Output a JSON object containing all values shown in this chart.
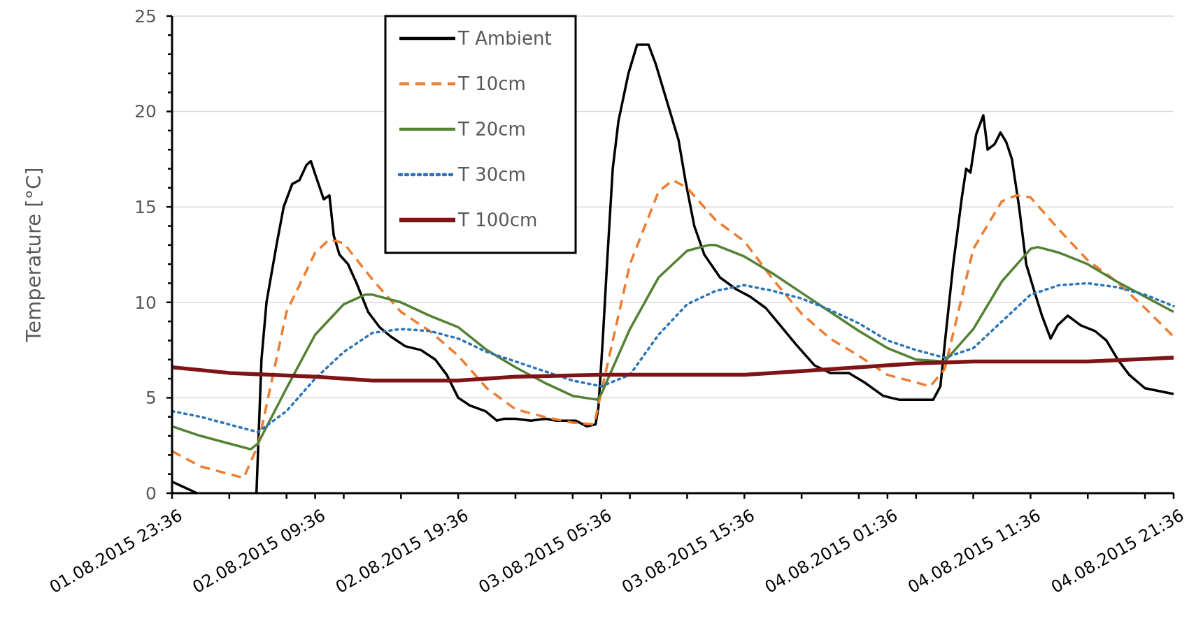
{
  "chart_data": {
    "type": "line",
    "ylabel": "Temperature [°C]",
    "legend": "top left",
    "grid": "y",
    "xlim": [
      "2015-08-01T23:36",
      "2015-08-04T21:36"
    ],
    "xticks": [
      {
        "value": "2015-08-01T23:36",
        "label": "01.08.2015 23:36"
      },
      {
        "value": "2015-08-02T03:36",
        "label": null
      },
      {
        "value": "2015-08-02T07:36",
        "label": null
      },
      {
        "value": "2015-08-02T09:36",
        "label": "02.08.2015 09:36"
      },
      {
        "value": "2015-08-02T11:36",
        "label": null
      },
      {
        "value": "2015-08-02T15:36",
        "label": null
      },
      {
        "value": "2015-08-02T19:36",
        "label": "02.08.2015 19:36"
      },
      {
        "value": "2015-08-02T23:36",
        "label": null
      },
      {
        "value": "2015-08-03T03:36",
        "label": null
      },
      {
        "value": "2015-08-03T05:36",
        "label": "03.08.2015 05:36"
      },
      {
        "value": "2015-08-03T07:36",
        "label": null
      },
      {
        "value": "2015-08-03T11:36",
        "label": null
      },
      {
        "value": "2015-08-03T15:36",
        "label": "03.08.2015 15:36"
      },
      {
        "value": "2015-08-03T19:36",
        "label": null
      },
      {
        "value": "2015-08-03T23:36",
        "label": null
      },
      {
        "value": "2015-08-04T01:36",
        "label": "04.08.2015 01:36"
      },
      {
        "value": "2015-08-04T03:36",
        "label": null
      },
      {
        "value": "2015-08-04T07:36",
        "label": null
      },
      {
        "value": "2015-08-04T11:36",
        "label": "04.08.2015 11:36"
      },
      {
        "value": "2015-08-04T15:36",
        "label": null
      },
      {
        "value": "2015-08-04T19:36",
        "label": null
      },
      {
        "value": "2015-08-04T21:36",
        "label": "04.08.2015 21:36"
      }
    ],
    "ylim": [
      0,
      25
    ],
    "yticks": [
      0,
      {
        "value": 1,
        "label": null
      },
      {
        "value": 2,
        "label": null
      },
      {
        "value": 3,
        "label": null
      },
      {
        "value": 4,
        "label": null
      },
      5,
      {
        "value": 6,
        "label": null
      },
      {
        "value": 7,
        "label": null
      },
      {
        "value": 8,
        "label": null
      },
      {
        "value": 9,
        "label": null
      },
      10,
      {
        "value": 11,
        "label": null
      },
      {
        "value": 12,
        "label": null
      },
      {
        "value": 13,
        "label": null
      },
      {
        "value": 14,
        "label": null
      },
      15,
      {
        "value": 16,
        "label": null
      },
      {
        "value": 17,
        "label": null
      },
      {
        "value": 18,
        "label": null
      },
      {
        "value": 19,
        "label": null
      },
      20,
      {
        "value": 21,
        "label": null
      },
      {
        "value": 22,
        "label": null
      },
      {
        "value": 23,
        "label": null
      },
      {
        "value": 24,
        "label": null
      },
      25
    ],
    "series": [
      {
        "name": "T Ambient",
        "color": "#000000",
        "line_style": "solid",
        "x": [
          "2015-08-01T23:36",
          "2015-08-02T01:21",
          "2015-08-02T03:24",
          "2015-08-02T05:30",
          "2015-08-02T05:51",
          "2015-08-02T06:12",
          "2015-08-02T06:54",
          "2015-08-02T07:24",
          "2015-08-02T08:00",
          "2015-08-02T08:30",
          "2015-08-02T09:00",
          "2015-08-02T09:18",
          "2015-08-02T09:42",
          "2015-08-02T10:12",
          "2015-08-02T10:36",
          "2015-08-02T10:54",
          "2015-08-02T11:18",
          "2015-08-02T11:54",
          "2015-08-02T12:30",
          "2015-08-02T13:18",
          "2015-08-02T14:06",
          "2015-08-02T14:54",
          "2015-08-02T15:54",
          "2015-08-02T17:00",
          "2015-08-02T18:00",
          "2015-08-02T18:48",
          "2015-08-02T19:36",
          "2015-08-02T20:24",
          "2015-08-02T21:30",
          "2015-08-02T22:18",
          "2015-08-02T22:48",
          "2015-08-02T23:36",
          "2015-08-03T00:42",
          "2015-08-03T01:42",
          "2015-08-03T02:30",
          "2015-08-03T03:48",
          "2015-08-03T04:36",
          "2015-08-03T05:12",
          "2015-08-03T05:24",
          "2015-08-03T05:42",
          "2015-08-03T06:00",
          "2015-08-03T06:24",
          "2015-08-03T06:48",
          "2015-08-03T07:30",
          "2015-08-03T08:06",
          "2015-08-03T08:54",
          "2015-08-03T09:24",
          "2015-08-03T10:12",
          "2015-08-03T11:00",
          "2015-08-03T11:30",
          "2015-08-03T12:06",
          "2015-08-03T12:48",
          "2015-08-03T13:54",
          "2015-08-03T15:00",
          "2015-08-03T16:00",
          "2015-08-03T17:06",
          "2015-08-03T18:06",
          "2015-08-03T19:12",
          "2015-08-03T20:30",
          "2015-08-03T21:36",
          "2015-08-03T22:54",
          "2015-08-04T00:00",
          "2015-08-04T01:18",
          "2015-08-04T02:24",
          "2015-08-04T03:24",
          "2015-08-04T04:48",
          "2015-08-04T05:18",
          "2015-08-04T05:42",
          "2015-08-04T06:12",
          "2015-08-04T06:48",
          "2015-08-04T07:06",
          "2015-08-04T07:24",
          "2015-08-04T07:48",
          "2015-08-04T08:18",
          "2015-08-04T08:36",
          "2015-08-04T09:06",
          "2015-08-04T09:30",
          "2015-08-04T09:54",
          "2015-08-04T10:18",
          "2015-08-04T10:48",
          "2015-08-04T11:18",
          "2015-08-04T11:54",
          "2015-08-04T12:24",
          "2015-08-04T13:00",
          "2015-08-04T13:30",
          "2015-08-04T14:12",
          "2015-08-04T15:06",
          "2015-08-04T16:06",
          "2015-08-04T16:54",
          "2015-08-04T17:42",
          "2015-08-04T18:30",
          "2015-08-04T19:36",
          "2015-08-04T21:36"
        ],
        "values": [
          0.6,
          0,
          null,
          0,
          7,
          10,
          13,
          15,
          16.2,
          16.4,
          17.2,
          17.4,
          16.5,
          15.4,
          15.6,
          13.5,
          12.5,
          12,
          11,
          9.5,
          8.7,
          8.2,
          7.7,
          7.5,
          7.0,
          6.2,
          5.0,
          4.6,
          4.3,
          3.8,
          3.9,
          3.9,
          3.8,
          3.9,
          3.8,
          3.8,
          3.5,
          3.6,
          4.5,
          8,
          12,
          17,
          19.5,
          22,
          23.5,
          23.5,
          22.5,
          20.5,
          18.5,
          16.3,
          14,
          12.5,
          11.3,
          10.7,
          10.3,
          9.7,
          8.8,
          7.8,
          6.7,
          6.3,
          6.3,
          5.8,
          5.1,
          4.9,
          4.9,
          4.9,
          5.6,
          8.5,
          12,
          15.5,
          17,
          16.8,
          18.8,
          19.8,
          18,
          18.3,
          18.9,
          18.4,
          17.5,
          15,
          12,
          10.5,
          9.3,
          8.1,
          8.8,
          9.3,
          8.8,
          8.5,
          8,
          7,
          6.2,
          5.5,
          5.2
        ]
      },
      {
        "name": "T 10cm",
        "color": "#ed7d31",
        "line_style": "dashed",
        "x": [
          "2015-08-01T23:36",
          "2015-08-02T01:36",
          "2015-08-02T03:36",
          "2015-08-02T04:36",
          "2015-08-02T05:36",
          "2015-08-02T07:36",
          "2015-08-02T09:36",
          "2015-08-02T10:36",
          "2015-08-02T11:36",
          "2015-08-02T13:36",
          "2015-08-02T15:36",
          "2015-08-02T17:36",
          "2015-08-02T19:36",
          "2015-08-02T21:36",
          "2015-08-02T23:36",
          "2015-08-03T01:36",
          "2015-08-03T03:36",
          "2015-08-03T05:06",
          "2015-08-03T05:36",
          "2015-08-03T07:36",
          "2015-08-03T09:36",
          "2015-08-03T10:36",
          "2015-08-03T11:36",
          "2015-08-03T13:36",
          "2015-08-03T15:36",
          "2015-08-03T17:36",
          "2015-08-03T19:36",
          "2015-08-03T21:36",
          "2015-08-03T23:36",
          "2015-08-04T01:36",
          "2015-08-04T03:36",
          "2015-08-04T04:36",
          "2015-08-04T05:36",
          "2015-08-04T07:36",
          "2015-08-04T09:36",
          "2015-08-04T10:36",
          "2015-08-04T11:36",
          "2015-08-04T13:36",
          "2015-08-04T15:36",
          "2015-08-04T17:36",
          "2015-08-04T19:36",
          "2015-08-04T21:36"
        ],
        "values": [
          2.2,
          1.4,
          1.0,
          0.8,
          2.5,
          9.5,
          12.6,
          13.3,
          13.1,
          11.2,
          9.5,
          8.5,
          7.2,
          5.5,
          4.4,
          4.0,
          3.7,
          3.6,
          5.3,
          12,
          15.8,
          16.4,
          16.0,
          14.3,
          13.2,
          11.2,
          9.4,
          8.1,
          7.2,
          6.2,
          5.8,
          5.6,
          6.5,
          12.8,
          15.3,
          15.6,
          15.5,
          13.8,
          12.2,
          11.1,
          9.7,
          8.2
        ]
      },
      {
        "name": "T 20cm",
        "color": "#548235",
        "line_style": "solid",
        "x": [
          "2015-08-01T23:36",
          "2015-08-02T01:36",
          "2015-08-02T03:36",
          "2015-08-02T05:06",
          "2015-08-02T05:36",
          "2015-08-02T07:36",
          "2015-08-02T09:36",
          "2015-08-02T11:36",
          "2015-08-02T13:06",
          "2015-08-02T13:36",
          "2015-08-02T15:36",
          "2015-08-02T17:36",
          "2015-08-02T19:36",
          "2015-08-02T21:36",
          "2015-08-02T23:36",
          "2015-08-03T01:36",
          "2015-08-03T03:36",
          "2015-08-03T05:18",
          "2015-08-03T05:36",
          "2015-08-03T07:36",
          "2015-08-03T09:36",
          "2015-08-03T11:36",
          "2015-08-03T13:06",
          "2015-08-03T13:36",
          "2015-08-03T15:36",
          "2015-08-03T17:36",
          "2015-08-03T19:36",
          "2015-08-03T21:36",
          "2015-08-03T23:36",
          "2015-08-04T01:36",
          "2015-08-04T03:36",
          "2015-08-04T05:36",
          "2015-08-04T07:36",
          "2015-08-04T09:36",
          "2015-08-04T11:36",
          "2015-08-04T12:06",
          "2015-08-04T13:36",
          "2015-08-04T15:36",
          "2015-08-04T17:36",
          "2015-08-04T19:36",
          "2015-08-04T21:36"
        ],
        "values": [
          3.5,
          3.0,
          2.6,
          2.3,
          2.6,
          5.5,
          8.3,
          9.9,
          10.4,
          10.4,
          10.0,
          9.3,
          8.7,
          7.5,
          6.6,
          5.8,
          5.1,
          4.9,
          5.2,
          8.6,
          11.3,
          12.7,
          13.0,
          13.0,
          12.4,
          11.5,
          10.5,
          9.5,
          8.5,
          7.6,
          7.0,
          6.9,
          8.6,
          11.1,
          12.8,
          12.9,
          12.6,
          12.0,
          11.1,
          10.3,
          9.5
        ]
      },
      {
        "name": "T 30cm",
        "color": "#2e75b6",
        "line_style": "dotted",
        "x": [
          "2015-08-01T23:36",
          "2015-08-02T01:36",
          "2015-08-02T03:36",
          "2015-08-02T05:36",
          "2015-08-02T07:36",
          "2015-08-02T09:36",
          "2015-08-02T11:36",
          "2015-08-02T13:36",
          "2015-08-02T15:36",
          "2015-08-02T17:36",
          "2015-08-02T19:36",
          "2015-08-02T21:36",
          "2015-08-02T23:36",
          "2015-08-03T01:36",
          "2015-08-03T03:36",
          "2015-08-03T05:36",
          "2015-08-03T07:36",
          "2015-08-03T09:36",
          "2015-08-03T11:36",
          "2015-08-03T13:36",
          "2015-08-03T15:36",
          "2015-08-03T17:36",
          "2015-08-03T19:36",
          "2015-08-03T21:36",
          "2015-08-03T23:36",
          "2015-08-04T01:36",
          "2015-08-04T03:36",
          "2015-08-04T05:36",
          "2015-08-04T07:36",
          "2015-08-04T09:36",
          "2015-08-04T11:36",
          "2015-08-04T13:36",
          "2015-08-04T15:36",
          "2015-08-04T17:36",
          "2015-08-04T19:36",
          "2015-08-04T21:36"
        ],
        "values": [
          4.3,
          4.0,
          3.6,
          3.2,
          4.3,
          6.0,
          7.4,
          8.4,
          8.6,
          8.5,
          8.1,
          7.4,
          6.9,
          6.4,
          5.9,
          5.6,
          6.2,
          8.3,
          9.9,
          10.6,
          10.9,
          10.6,
          10.2,
          9.6,
          8.9,
          8.0,
          7.5,
          7.1,
          7.6,
          9.0,
          10.4,
          10.9,
          11.0,
          10.8,
          10.4,
          9.8
        ]
      },
      {
        "name": "T 100cm",
        "color": "#7f1416",
        "line_style": "solid",
        "x": [
          "2015-08-01T23:36",
          "2015-08-02T03:36",
          "2015-08-02T09:36",
          "2015-08-02T13:36",
          "2015-08-02T19:36",
          "2015-08-02T23:36",
          "2015-08-03T05:36",
          "2015-08-03T11:36",
          "2015-08-03T15:36",
          "2015-08-03T19:36",
          "2015-08-03T23:36",
          "2015-08-04T03:36",
          "2015-08-04T07:36",
          "2015-08-04T15:36",
          "2015-08-04T21:36"
        ],
        "values": [
          6.6,
          6.3,
          6.1,
          5.9,
          5.9,
          6.1,
          6.2,
          6.2,
          6.2,
          6.4,
          6.6,
          6.8,
          6.9,
          6.9,
          7.1
        ]
      }
    ]
  }
}
